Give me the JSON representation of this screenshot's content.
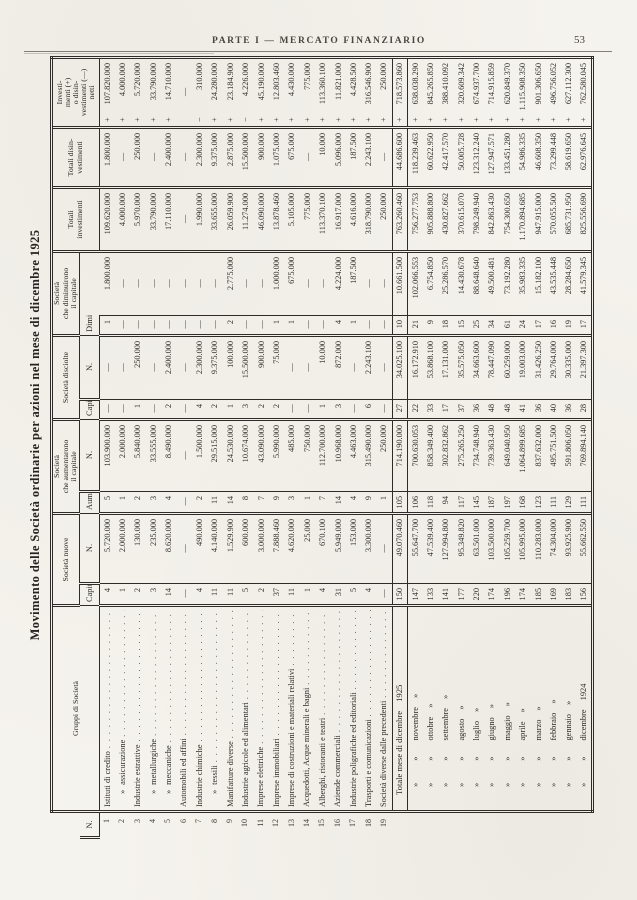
{
  "page": {
    "running_head": "PARTE I — MERCATO FINANZIARIO",
    "page_number": "53"
  },
  "table": {
    "title": "Movimento delle Società ordinarie per azioni nel mese di dicembre 1925",
    "headers": {
      "gruppi": "Gruppi di Società",
      "nuove": "Società nuove",
      "aumentarono": "Società\nche aumentarono\nil capitale",
      "disciolte": "Società disciolte",
      "diminuirono": "Società\nche diminuirono\nil capitale",
      "tot_investimenti": "Totali\ninvestimenti",
      "tot_disinvestimenti": "Totali disin-\nvestimenti",
      "netti": "Investi-\nmenti (+)\no disin-\nvestimenti (—)\nnetti",
      "sub_n": "N.",
      "sub_capitale": "Capitale",
      "sub_aumento": "Aumento",
      "sub_diminuzione": "Diminuzione"
    },
    "rows": [
      {
        "n": "1",
        "label": "Istituti di credito",
        "dots": 1,
        "c": [
          "4",
          "5.720.000",
          "5",
          "103.900.000",
          "—",
          "—",
          "1",
          "1.800.000",
          "109.620.000",
          "1.800.000",
          "+ 107.820.000"
        ]
      },
      {
        "n": "2",
        "pre": "»",
        "ind": 1,
        "label": "assicurazione",
        "dots": 1,
        "c": [
          "1",
          "2.000.000",
          "1",
          "2.000.000",
          "—",
          "—",
          "—",
          "—",
          "4.000.000",
          "—",
          "+ 4.000.000"
        ]
      },
      {
        "n": "3",
        "label": "Industrie estrattive",
        "dots": 1,
        "c": [
          "2",
          "130.000",
          "2",
          "5.840.000",
          "1",
          "250.000",
          "—",
          "—",
          "5.970.000",
          "250.000",
          "+ 5.720.000"
        ]
      },
      {
        "n": "4",
        "pre": "»",
        "ind": 1,
        "label": "metallurgiche",
        "dots": 1,
        "c": [
          "3",
          "235.000",
          "3",
          "33.555.000",
          "—",
          "—",
          "—",
          "—",
          "33.790.000",
          "—",
          "+ 33.790.000"
        ]
      },
      {
        "n": "5",
        "pre": "»",
        "ind": 1,
        "label": "meccaniche",
        "dots": 1,
        "c": [
          "14",
          "8.620.000",
          "4",
          "8.490.000",
          "2",
          "2.400.000",
          "—",
          "—",
          "17.110.000",
          "2.400.000",
          "+ 14.710.000"
        ]
      },
      {
        "n": "6",
        "label": "Automobili ed affini",
        "dots": 1,
        "c": [
          "—",
          "—",
          "—",
          "—",
          "—",
          "—",
          "—",
          "—",
          "—",
          "—",
          "—"
        ]
      },
      {
        "n": "7",
        "label": "Industrie chimiche",
        "dots": 1,
        "c": [
          "4",
          "490.000",
          "2",
          "1.500.000",
          "4",
          "2.300.000",
          "—",
          "—",
          "1.990.000",
          "2.300.000",
          "− 310.000"
        ]
      },
      {
        "n": "8",
        "pre": "»",
        "ind": 1,
        "label": "tessili",
        "dots": 1,
        "c": [
          "11",
          "4.140.000",
          "11",
          "29.515.000",
          "2",
          "9.375.000",
          "—",
          "—",
          "33.655.000",
          "9.375.000",
          "+ 24.280.000"
        ]
      },
      {
        "n": "9",
        "label": "Manifatture diverse",
        "dots": 1,
        "c": [
          "11",
          "1.529.900",
          "14",
          "24.530.000",
          "1",
          "100.000",
          "2",
          "2.775.000",
          "26.059.900",
          "2.875.000",
          "+ 23.184.900"
        ]
      },
      {
        "n": "10",
        "label": "Industrie agricole ed alimentari",
        "dots": 1,
        "c": [
          "5",
          "600.000",
          "8",
          "10.674.000",
          "3",
          "15.500.000",
          "—",
          "—",
          "11.274.000",
          "15.500.000",
          "− 4.226.000"
        ]
      },
      {
        "n": "11",
        "label": "Imprese elettriche",
        "dots": 1,
        "c": [
          "2",
          "3.000.000",
          "7",
          "43.090.000",
          "2",
          "900.000",
          "—",
          "—",
          "46.090.000",
          "900.000",
          "+ 45.190.000"
        ]
      },
      {
        "n": "12",
        "label": "Imprese immobiliari",
        "dots": 1,
        "c": [
          "37",
          "7.888.460",
          "9",
          "5.990.000",
          "2",
          "75.000",
          "1",
          "1.000.000",
          "13.878.460",
          "1.075.000",
          "+ 12.803.460"
        ]
      },
      {
        "n": "13",
        "label": "Imprese di costruzioni e materiali relativi",
        "dots": 1,
        "c": [
          "11",
          "4.620.000",
          "3",
          "485.000",
          "—",
          "—",
          "1",
          "675.000",
          "5.105.000",
          "675.000",
          "+ 4.430.000"
        ]
      },
      {
        "n": "14",
        "label": "Acquedotti, Acque minerali e bagni",
        "dots": 1,
        "c": [
          "1",
          "25.000",
          "1",
          "750.000",
          "—",
          "—",
          "—",
          "—",
          "775.000",
          "—",
          "+ 775.000"
        ]
      },
      {
        "n": "15",
        "label": "Alberghi, ristoranti e teatri",
        "dots": 1,
        "c": [
          "4",
          "670.100",
          "7",
          "112.700.000",
          "1",
          "10.000",
          "—",
          "—",
          "113.370.100",
          "10.000",
          "+ 113.360.100"
        ]
      },
      {
        "n": "16",
        "label": "Aziende commerciali",
        "dots": 1,
        "c": [
          "31",
          "5.949.000",
          "14",
          "10.968.000",
          "3",
          "872.000",
          "4",
          "4.224.000",
          "16.917.000",
          "5.096.000",
          "+ 11.821.000"
        ]
      },
      {
        "n": "17",
        "label": "Industrie poligrafiche ed editoriali",
        "dots": 1,
        "c": [
          "5",
          "153.000",
          "4",
          "4.463.000",
          "—",
          "—",
          "1",
          "187.500",
          "4.616.000",
          "187.500",
          "+ 4.428.500"
        ]
      },
      {
        "n": "18",
        "label": "Trasporti e comunicazioni",
        "dots": 1,
        "c": [
          "4",
          "3.300.000",
          "9",
          "315.490.000",
          "6",
          "2.243.100",
          "—",
          "—",
          "318.790.000",
          "2.243.100",
          "+ 316.546.900"
        ]
      },
      {
        "n": "19",
        "label": "Società diverse dalle precedenti",
        "dots": 1,
        "c": [
          "—",
          "—",
          "1",
          "250.000",
          "—",
          "—",
          "—",
          "—",
          "250.000",
          "—",
          "+ 250.000"
        ]
      }
    ],
    "totale": {
      "label": "Totale mese di dicembre",
      "suf": "1925",
      "c": [
        "150",
        "49.070.460",
        "105",
        "714.190.000",
        "27",
        "34.025.100",
        "10",
        "10.661.500",
        "763.260.460",
        "44.686.600",
        "+ 718.573.860"
      ]
    },
    "months": [
      {
        "pre": "» »",
        "label": "novembre",
        "suf": "»",
        "c": [
          "147",
          "55.647.700",
          "106",
          "700.630.053",
          "22",
          "16.172.910",
          "21",
          "102.066.553",
          "756.277.753",
          "118.239.463",
          "+ 638.038.290"
        ]
      },
      {
        "pre": "» »",
        "label": "ottobre",
        "suf": "»",
        "c": [
          "133",
          "47.539.400",
          "118",
          "858.349.400",
          "33",
          "53.868.100",
          "9",
          "6.754.850",
          "905.888.800",
          "60.622.950",
          "+ 845.265.850"
        ]
      },
      {
        "pre": "» »",
        "label": "settembre",
        "suf": "»",
        "c": [
          "141",
          "127.994.800",
          "94",
          "302.832.862",
          "17",
          "17.131.000",
          "18",
          "25.286.570",
          "430.827.662",
          "42.417.570",
          "+ 388.410.092"
        ]
      },
      {
        "pre": "» »",
        "label": "agosto",
        "suf": "»",
        "c": [
          "177",
          "95.349.820",
          "117",
          "275.265.250",
          "37",
          "35.575.050",
          "15",
          "14.430.678",
          "370.615.070",
          "50.005.728",
          "+ 320.609.342"
        ]
      },
      {
        "pre": "» »",
        "label": "luglio",
        "suf": "»",
        "c": [
          "220",
          "63.501.000",
          "145",
          "734.748.940",
          "36",
          "34.663.600",
          "25",
          "88.648.640",
          "798.249.940",
          "123.312.240",
          "+ 674.937.700"
        ]
      },
      {
        "pre": "» »",
        "label": "giugno",
        "suf": "»",
        "c": [
          "174",
          "103.500.000",
          "187",
          "739.363.430",
          "48",
          "78.447.090",
          "34",
          "49.500.481",
          "842.863.430",
          "127.947.571",
          "+ 714.915.859"
        ]
      },
      {
        "pre": "» »",
        "label": "maggio",
        "suf": "»",
        "c": [
          "196",
          "105.259.700",
          "197",
          "649.040.950",
          "48",
          "60.259.000",
          "61",
          "73.192.280",
          "754.300.650",
          "133.451.280",
          "+ 620.849.370"
        ]
      },
      {
        "pre": "» »",
        "label": "aprile",
        "suf": "»",
        "c": [
          "174",
          "105.995.000",
          "168",
          "1.064.899.685",
          "41",
          "19.003.000",
          "24",
          "35.983.335",
          "1.170.894.685",
          "54.986.335",
          "+ 1.115.908.350"
        ]
      },
      {
        "pre": "» »",
        "label": "marzo",
        "suf": "»",
        "c": [
          "185",
          "110.283.000",
          "123",
          "837.632.000",
          "36",
          "31.426.250",
          "17",
          "15.182.100",
          "947.915.000",
          "46.608.350",
          "+ 901.306.650"
        ]
      },
      {
        "pre": "» »",
        "label": "febbraio",
        "suf": "»",
        "c": [
          "169",
          "74.304.000",
          "111",
          "495.751.500",
          "40",
          "29.764.000",
          "16",
          "43.535.448",
          "570.055.500",
          "73.299.448",
          "+ 496.756.052"
        ]
      },
      {
        "pre": "» »",
        "label": "gennaio",
        "suf": "»",
        "c": [
          "183",
          "93.925.900",
          "129",
          "591.806.050",
          "36",
          "30.335.000",
          "19",
          "28.284.650",
          "685.731.950",
          "58.619.650",
          "+ 627.112.300"
        ]
      },
      {
        "pre": "» »",
        "label": "dicembre",
        "suf": "1924",
        "c": [
          "156",
          "55.662.550",
          "111",
          "769.894.140",
          "28",
          "21.397.300",
          "17",
          "41.579.345",
          "825.556.690",
          "62.976.645",
          "+ 762.580.045"
        ]
      }
    ]
  }
}
